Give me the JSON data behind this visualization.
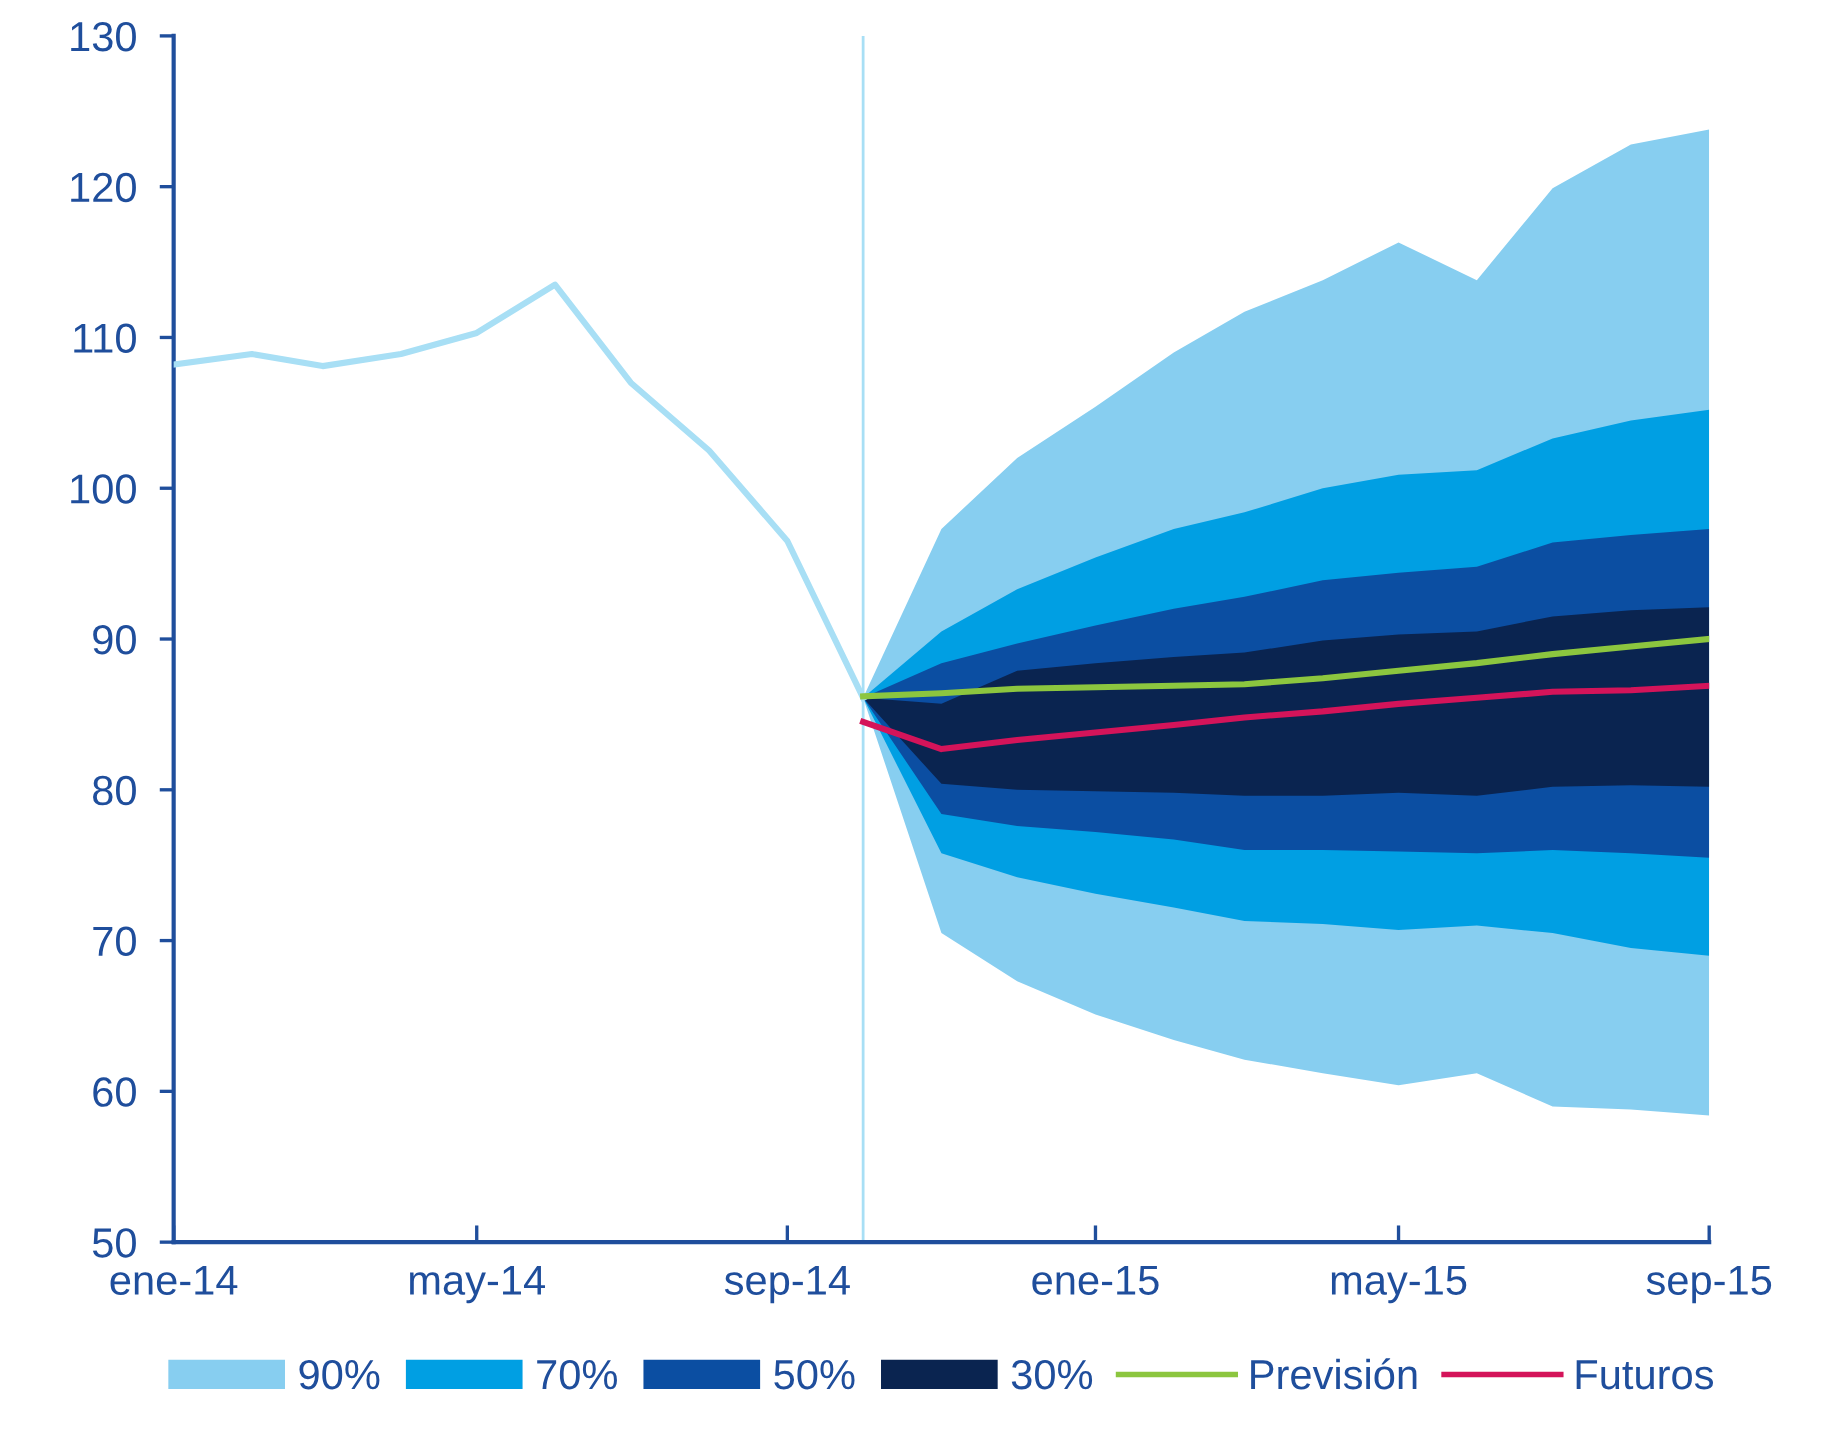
{
  "chart_data": {
    "type": "line",
    "x": [
      "2014-01",
      "2014-02",
      "2014-03",
      "2014-04",
      "2014-05",
      "2014-06",
      "2014-07",
      "2014-08",
      "2014-09",
      "2014-10",
      "2014-11",
      "2014-12",
      "2015-01",
      "2015-02",
      "2015-03",
      "2015-04",
      "2015-05",
      "2015-06",
      "2015-07",
      "2015-08",
      "2015-09"
    ],
    "series": [
      {
        "color": "#a8dff5",
        "values": [
          108.2,
          108.9,
          108.1,
          108.9,
          110.3,
          113.5,
          107.0,
          102.5,
          96.5,
          86.1,
          null,
          null,
          null,
          null,
          null,
          null,
          null,
          null,
          null,
          null,
          null
        ]
      },
      {
        "type": "area",
        "name": "90%",
        "color": "#87cef0",
        "values": [
          null,
          null,
          null,
          null,
          null,
          null,
          null,
          null,
          null,
          null,
          null,
          null,
          null,
          null,
          null,
          null,
          null,
          null,
          null,
          null,
          null
        ],
        "lower": [
          null,
          null,
          null,
          null,
          null,
          null,
          null,
          null,
          null,
          86.1,
          70.5,
          67.3,
          65.1,
          63.4,
          62.1,
          61.2,
          60.4,
          61.2,
          59.0,
          58.8,
          58.4
        ],
        "upper": [
          null,
          null,
          null,
          null,
          null,
          null,
          null,
          null,
          null,
          86.1,
          97.3,
          102.0,
          105.4,
          109.0,
          111.7,
          113.8,
          116.3,
          113.8,
          119.9,
          122.8,
          123.8
        ]
      },
      {
        "type": "area",
        "name": "70%",
        "color": "#009fe3",
        "values": [
          null,
          null,
          null,
          null,
          null,
          null,
          null,
          null,
          null,
          null,
          null,
          null,
          null,
          null,
          null,
          null,
          null,
          null,
          null,
          null,
          null
        ],
        "lower": [
          null,
          null,
          null,
          null,
          null,
          null,
          null,
          null,
          null,
          86.1,
          75.8,
          74.2,
          73.1,
          72.2,
          71.3,
          71.1,
          70.7,
          71.0,
          70.5,
          69.5,
          69.0
        ],
        "upper": [
          null,
          null,
          null,
          null,
          null,
          null,
          null,
          null,
          null,
          86.1,
          90.5,
          93.3,
          95.4,
          97.3,
          98.4,
          100.0,
          100.9,
          101.2,
          103.3,
          104.5,
          105.2
        ]
      },
      {
        "type": "area",
        "name": "50%",
        "color": "#0b4ea2",
        "values": [
          null,
          null,
          null,
          null,
          null,
          null,
          null,
          null,
          null,
          null,
          null,
          null,
          null,
          null,
          null,
          null,
          null,
          null,
          null,
          null,
          null
        ],
        "lower": [
          null,
          null,
          null,
          null,
          null,
          null,
          null,
          null,
          null,
          86.1,
          78.4,
          77.6,
          77.2,
          76.7,
          76.0,
          76.0,
          75.9,
          75.8,
          76.0,
          75.8,
          75.5
        ],
        "upper": [
          null,
          null,
          null,
          null,
          null,
          null,
          null,
          null,
          null,
          86.1,
          88.4,
          89.7,
          90.9,
          92.0,
          92.8,
          93.9,
          94.4,
          94.8,
          96.4,
          96.9,
          97.3
        ]
      },
      {
        "type": "area",
        "name": "30%",
        "color": "#0a2450",
        "values": [
          null,
          null,
          null,
          null,
          null,
          null,
          null,
          null,
          null,
          null,
          null,
          null,
          null,
          null,
          null,
          null,
          null,
          null,
          null,
          null,
          null
        ],
        "lower": [
          null,
          null,
          null,
          null,
          null,
          null,
          null,
          null,
          null,
          86.1,
          80.4,
          80.0,
          79.9,
          79.8,
          79.6,
          79.6,
          79.8,
          79.6,
          80.2,
          80.3,
          80.2
        ],
        "upper": [
          null,
          null,
          null,
          null,
          null,
          null,
          null,
          null,
          null,
          86.1,
          85.7,
          87.9,
          88.4,
          88.8,
          89.1,
          89.9,
          90.3,
          90.5,
          91.5,
          91.9,
          92.1
        ]
      },
      {
        "name": "Previsión",
        "color": "#8cc63f",
        "values": [
          null,
          null,
          null,
          null,
          null,
          null,
          null,
          null,
          null,
          86.2,
          86.4,
          86.7,
          86.8,
          86.9,
          87.0,
          87.4,
          87.9,
          88.4,
          89.0,
          89.5,
          90.0
        ]
      },
      {
        "name": "Futuros",
        "color": "#d4145a",
        "values": [
          null,
          null,
          null,
          null,
          null,
          null,
          null,
          null,
          null,
          84.5,
          82.7,
          83.3,
          83.8,
          84.3,
          84.8,
          85.2,
          85.7,
          86.1,
          86.5,
          86.6,
          86.9
        ]
      }
    ],
    "xlim": [
      "2014-01",
      "2015-09"
    ],
    "xticks": [
      {
        "value": "2014-01",
        "label": "ene-14"
      },
      {
        "value": "2014-05",
        "label": "may-14"
      },
      {
        "value": "2014-09",
        "label": "sep-14"
      },
      {
        "value": "2015-01",
        "label": "ene-15"
      },
      {
        "value": "2015-05",
        "label": "may-15"
      },
      {
        "value": "2015-09",
        "label": "sep-15"
      }
    ],
    "ylim": [
      50,
      130
    ],
    "yticks": [
      50,
      60,
      70,
      80,
      90,
      100,
      110,
      120,
      130
    ],
    "ref_lines": [
      {
        "axis": "x",
        "value": "2014-10",
        "color": "#a8dff5"
      }
    ],
    "grid": false,
    "legend": "bottom"
  }
}
